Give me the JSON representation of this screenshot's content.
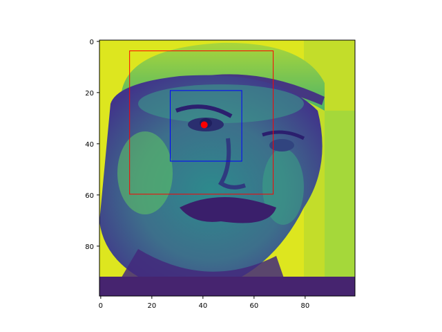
{
  "chart_data": {
    "type": "heatmap",
    "title": "",
    "xlabel": "",
    "ylabel": "",
    "colormap": "viridis",
    "image_shape": [
      100,
      100
    ],
    "xlim": [
      -0.5,
      99.5
    ],
    "ylim": [
      99.5,
      -0.5
    ],
    "y_axis_inverted": true,
    "grid": false,
    "x_ticks": [
      0,
      20,
      40,
      60,
      80
    ],
    "y_ticks": [
      0,
      20,
      40,
      60,
      80
    ],
    "x_tick_labels": [
      "0",
      "20",
      "40",
      "60",
      "80"
    ],
    "y_tick_labels": [
      "0",
      "20",
      "40",
      "60",
      "80"
    ],
    "overlays": {
      "boxes": [
        {
          "color": "#ff0000",
          "x0": 11.3,
          "y0": 3.7,
          "x1": 67.5,
          "y1": 59.7
        },
        {
          "color": "#0000ff",
          "x0": 27.2,
          "y0": 19.2,
          "x1": 55.2,
          "y1": 46.8
        }
      ],
      "points": [
        {
          "color": "#ff0000",
          "x": 40.5,
          "y": 32.6
        }
      ]
    }
  }
}
